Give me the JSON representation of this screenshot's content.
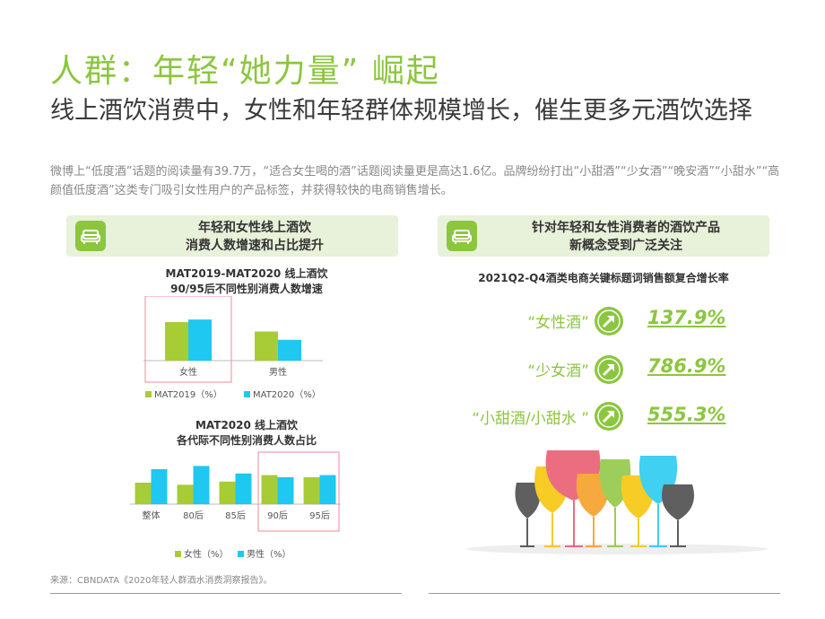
{
  "header": {
    "title": "人群：年轻“她力量” 崛起",
    "subtitle": "线上酒饮消费中，女性和年轻群体规模增长，催生更多元酒饮选择",
    "intro": "微博上“低度酒”话题的阅读量有39.7万，“适合女生喝的酒”话题阅读量更是高达1.6亿。品牌纷纷打出“小甜酒”“少女酒”“晚安酒”“小甜水”“高颜值低度酒”这类专门吸引女性用户的产品标签，并获得较快的电商销售增长。"
  },
  "left_banner": {
    "line1": "年轻和女性线上酒饮",
    "line2": "消费人数增速和占比提升"
  },
  "right_banner": {
    "line1": "针对年轻和女性消费者的酒饮产品",
    "line2": "新概念受到广泛关注"
  },
  "colors": {
    "green": "#a8cc36",
    "blue": "#1ec8f0",
    "accent": "#8cc63f",
    "highlight": "#f08a9a"
  },
  "chart_data": [
    {
      "type": "bar",
      "title": "MAT2019-MAT2020 线上酒饮\n90/95后不同性别消费人数增速",
      "categories": [
        "女性",
        "男性"
      ],
      "series": [
        {
          "name": "MAT2019（%）",
          "values": [
            74,
            56
          ]
        },
        {
          "name": "MAT2020（%）",
          "values": [
            79,
            40
          ]
        }
      ],
      "ylim": [
        0,
        100
      ],
      "highlight_category": "女性",
      "legend": "bottom",
      "grid": false
    },
    {
      "type": "bar",
      "title": "MAT2020 线上酒饮\n各代际不同性别消费人数占比",
      "categories": [
        "整体",
        "80后",
        "85后",
        "90后",
        "95后"
      ],
      "series": [
        {
          "name": "女性（%）",
          "values": [
            40,
            36,
            42,
            54,
            50
          ]
        },
        {
          "name": "男性（%）",
          "values": [
            65,
            71,
            57,
            50,
            54
          ]
        }
      ],
      "ylim": [
        0,
        100
      ],
      "highlight_categories": [
        "90后",
        "95后"
      ],
      "legend": "bottom",
      "grid": false
    }
  ],
  "keywords": {
    "title": "2021Q2-Q4酒类电商关键标题词销售额复合增长率",
    "items": [
      {
        "label": "“女性酒”",
        "value": "137.9%"
      },
      {
        "label": "“少女酒”",
        "value": "786.9%"
      },
      {
        "label": "“小甜酒/小甜水 ”",
        "value": "555.3%"
      }
    ]
  },
  "source": "来源：CBNDATA《2020年轻人群酒水消费洞察报告》。"
}
